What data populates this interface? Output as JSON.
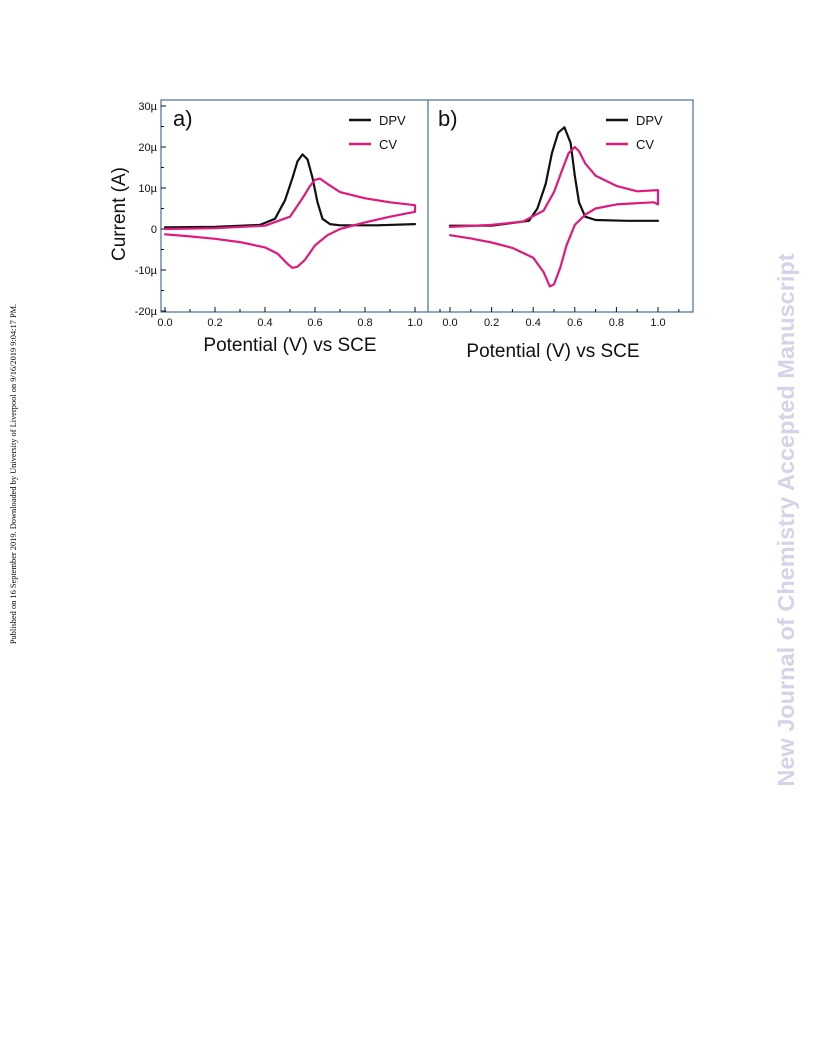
{
  "side_note": "Published on 16 September 2019. Downloaded by University of Liverpool on 9/16/2019 9:04:17 PM.",
  "watermark": "New Journal of Chemistry Accepted Manuscript",
  "colors": {
    "dpv": "#111111",
    "cv": "#e0197d",
    "frame": "#4a6d9c"
  },
  "chart_data": [
    {
      "type": "line",
      "panel_label": "a)",
      "xlabel": "Potential (V) vs SCE",
      "ylabel": "Current (A)",
      "xlim": [
        0.0,
        1.1
      ],
      "ylim": [
        -20,
        30
      ],
      "xticks": [
        "0.0",
        "0.2",
        "0.4",
        "0.6",
        "0.8",
        "1.0"
      ],
      "yticks": [
        "30µ",
        "20µ",
        "10µ",
        "0",
        "-10µ",
        "-20µ"
      ],
      "legend": "top-right",
      "series": [
        {
          "name": "DPV",
          "color": "#111111",
          "x": [
            0.0,
            0.2,
            0.38,
            0.44,
            0.48,
            0.51,
            0.53,
            0.55,
            0.57,
            0.59,
            0.61,
            0.63,
            0.66,
            0.7,
            0.85,
            1.0
          ],
          "y": [
            0.4,
            0.5,
            1.0,
            2.5,
            7.0,
            12.5,
            16.5,
            18.2,
            17.0,
            12.5,
            6.5,
            2.5,
            1.2,
            0.9,
            0.9,
            1.2
          ]
        },
        {
          "name": "CV",
          "color": "#e0197d",
          "x": [
            0.0,
            0.2,
            0.4,
            0.5,
            0.55,
            0.58,
            0.6,
            0.62,
            0.65,
            0.7,
            0.8,
            0.9,
            1.0,
            1.0,
            0.9,
            0.8,
            0.7,
            0.65,
            0.6,
            0.56,
            0.53,
            0.51,
            0.49,
            0.45,
            0.4,
            0.3,
            0.2,
            0.1,
            0.0
          ],
          "y": [
            0.0,
            0.2,
            0.8,
            3.0,
            7.5,
            10.5,
            12.0,
            12.3,
            11.0,
            9.0,
            7.5,
            6.5,
            5.8,
            4.2,
            3.0,
            1.6,
            0.0,
            -1.5,
            -4.0,
            -7.5,
            -9.2,
            -9.5,
            -8.5,
            -6.0,
            -4.5,
            -3.2,
            -2.4,
            -1.8,
            -1.3
          ]
        }
      ]
    },
    {
      "type": "line",
      "panel_label": "b)",
      "xlabel": "Potential (V) vs SCE",
      "ylabel": "",
      "xlim": [
        0.0,
        1.1
      ],
      "ylim": [
        -20,
        30
      ],
      "xticks": [
        "0.0",
        "0.2",
        "0.4",
        "0.6",
        "0.8",
        "1.0"
      ],
      "yticks": [],
      "legend": "top-right",
      "series": [
        {
          "name": "DPV",
          "color": "#111111",
          "x": [
            0.0,
            0.2,
            0.38,
            0.42,
            0.46,
            0.49,
            0.52,
            0.55,
            0.58,
            0.6,
            0.62,
            0.65,
            0.7,
            0.85,
            1.0
          ],
          "y": [
            0.8,
            0.8,
            2.0,
            5.0,
            11.0,
            18.5,
            23.5,
            24.8,
            21.0,
            13.0,
            6.5,
            3.0,
            2.2,
            2.0,
            2.0
          ],
          "yscale_note": ""
        },
        {
          "name": "CV",
          "color": "#e0197d",
          "x": [
            0.0,
            0.2,
            0.35,
            0.45,
            0.5,
            0.54,
            0.57,
            0.6,
            0.62,
            0.65,
            0.7,
            0.8,
            0.9,
            1.0,
            1.0,
            0.98,
            0.9,
            0.8,
            0.7,
            0.65,
            0.6,
            0.56,
            0.53,
            0.5,
            0.48,
            0.45,
            0.4,
            0.3,
            0.2,
            0.1,
            0.0
          ],
          "y": [
            0.5,
            1.0,
            1.8,
            4.5,
            9.0,
            14.5,
            18.5,
            20.0,
            19.0,
            16.0,
            13.0,
            10.5,
            9.2,
            9.5,
            6.0,
            6.5,
            6.3,
            6.0,
            5.0,
            3.5,
            1.0,
            -4.0,
            -9.5,
            -13.5,
            -14.0,
            -10.5,
            -7.0,
            -4.6,
            -3.3,
            -2.3,
            -1.5
          ]
        }
      ]
    }
  ]
}
